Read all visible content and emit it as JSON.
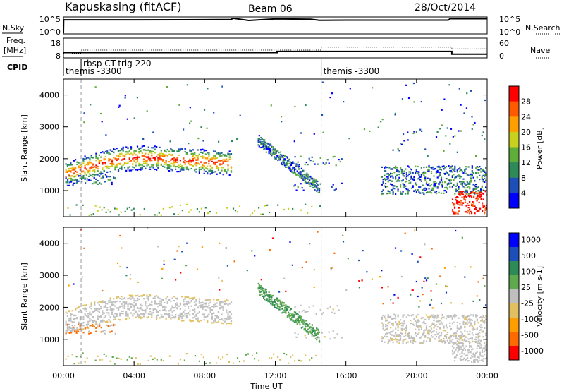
{
  "header": {
    "station": "Kapuskasing (fitACF)",
    "beam": "Beam 06",
    "date": "28/Oct/2014"
  },
  "labels": {
    "nsky": "N.Sky",
    "nsearch": "N.Search",
    "freq_line1": "Freq.",
    "freq_line2": "[MHz]",
    "nave": "Nave",
    "cpid": "CPID",
    "nsky_ticks": [
      "10^5",
      "10^0"
    ],
    "nsearch_ticks": [
      "10^5",
      "10^0"
    ],
    "freq_ticks": [
      "18",
      "8"
    ],
    "nave_ticks": [
      "60",
      "0"
    ]
  },
  "cpid_segments": [
    {
      "start_hour": 0.0,
      "label": "themis -3300"
    },
    {
      "start_hour": 1.0,
      "label": "rbsp CT-trig 220"
    },
    {
      "start_hour": 14.6,
      "label": "themis -3300"
    }
  ],
  "colors": {
    "power": [
      "#0000ff",
      "#1d4fb8",
      "#2e8b57",
      "#5fae3a",
      "#c8d21e",
      "#ff9e00",
      "#ff5a00",
      "#ff0000"
    ],
    "velocity": [
      "#ff0000",
      "#ff6a00",
      "#ff9e00",
      "#e0c060",
      "#bfbfbf",
      "#5faa4f",
      "#2e8b57",
      "#1d4fb8",
      "#0000ff"
    ]
  },
  "chart_data": [
    {
      "type": "line",
      "name": "nsky-nsearch",
      "x_range_hours": [
        0,
        24
      ],
      "ytick_labels": [
        "10^5",
        "10^0"
      ],
      "series": [
        {
          "name": "N.Sky",
          "x": [
            0.0,
            0.01,
            1.0,
            4.0,
            8.0,
            9.5,
            9.6,
            10.5,
            12.0,
            14.0,
            14.5,
            16.0,
            20.0,
            21.8,
            21.9,
            24.0
          ],
          "y": [
            0.0,
            0.86,
            0.86,
            0.86,
            0.87,
            0.88,
            0.96,
            0.82,
            0.92,
            0.9,
            0.83,
            0.84,
            0.84,
            0.84,
            0.93,
            0.93
          ]
        }
      ]
    },
    {
      "type": "line",
      "name": "freq-nave",
      "x_range_hours": [
        0,
        24
      ],
      "freq_ylim": [
        8,
        18
      ],
      "nave_ylim": [
        0,
        60
      ],
      "series": [
        {
          "name": "Freq",
          "x": [
            0.0,
            12.1,
            12.1,
            22.0,
            22.0,
            24.0
          ],
          "y": [
            10.5,
            10.5,
            11.1,
            11.1,
            9.6,
            9.6
          ]
        },
        {
          "name": "Nave",
          "x": [
            0.0,
            1.0,
            1.0,
            14.6,
            14.6,
            22.0,
            22.0,
            24.0
          ],
          "y": [
            12,
            12,
            23,
            23,
            33,
            33,
            27,
            27
          ]
        }
      ]
    },
    {
      "type": "heatmap",
      "name": "power",
      "x_range_hours": [
        0,
        24
      ],
      "ylim": [
        180,
        4500
      ],
      "ylabel": "Slant Range [km]",
      "yticks": [
        1000,
        2000,
        3000,
        4000
      ],
      "colorbar_label": "Power [dB]",
      "colorbar_ticks": [
        "4",
        "8",
        "12",
        "16",
        "20",
        "24",
        "28"
      ]
    },
    {
      "type": "heatmap",
      "name": "velocity",
      "x_range_hours": [
        0,
        24
      ],
      "ylim": [
        180,
        4500
      ],
      "ylabel": "Slant Range [km]",
      "yticks": [
        1000,
        2000,
        3000,
        4000
      ],
      "xlabel": "Time UT",
      "xtick_labels": [
        "00:00",
        "04:00",
        "08:00",
        "12:00",
        "16:00",
        "20:00",
        "00:00"
      ],
      "colorbar_label": "Velocity [m s-1]",
      "colorbar_ticks": [
        "1000",
        "500",
        "100",
        "25",
        "-25",
        "-100",
        "-500",
        "-1000"
      ]
    }
  ]
}
